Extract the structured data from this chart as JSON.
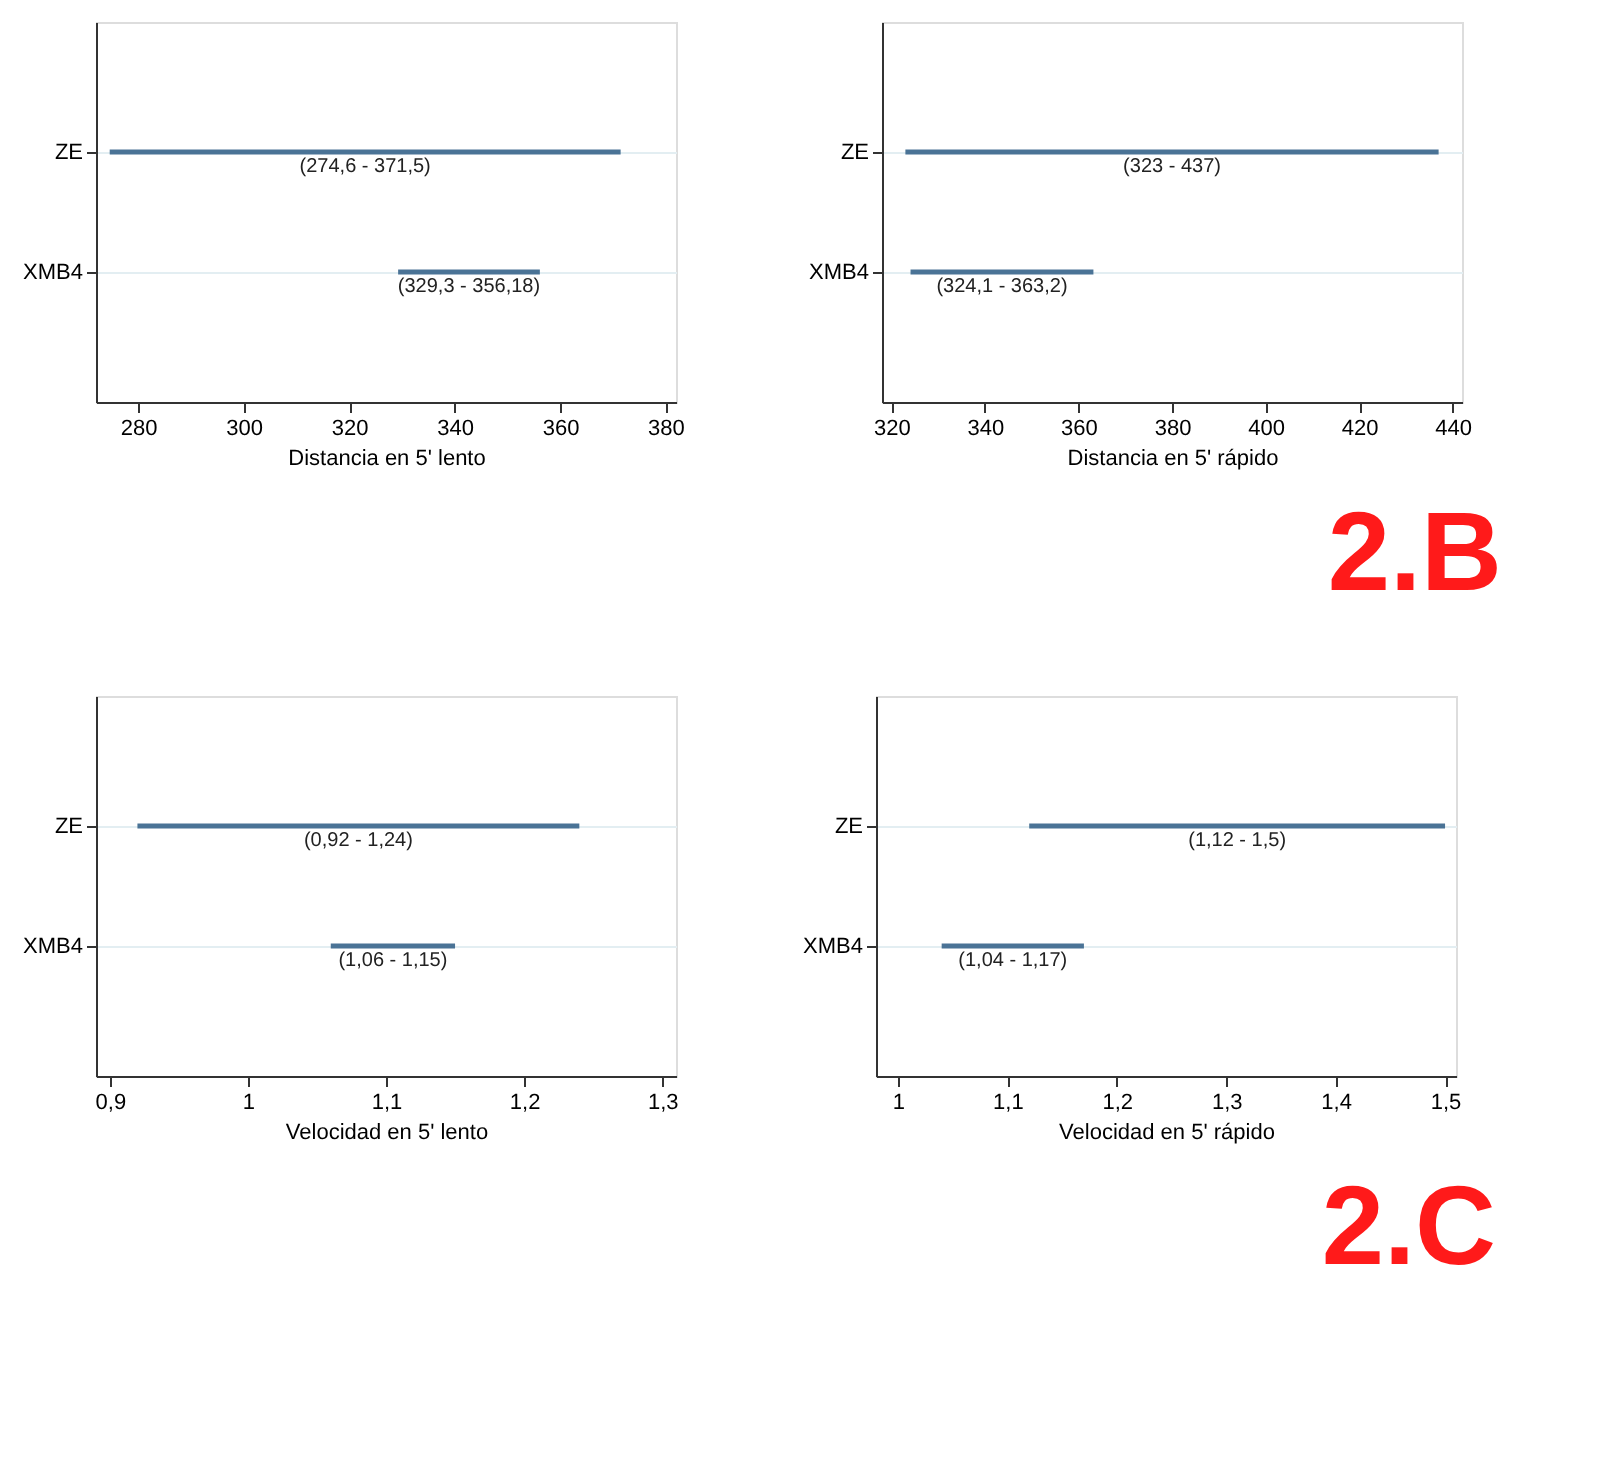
{
  "chart_data": [
    {
      "type": "bar",
      "orientation": "horizontal",
      "categories": [
        "ZE",
        "XMB4"
      ],
      "base": [
        274.6,
        329.3
      ],
      "values": [
        96.9,
        26.88
      ],
      "color": "#4a7396",
      "value_labels": [
        "(274,6 - 371,5)",
        "(329,3 - 356,18)"
      ],
      "xlabel": "Distancia en 5' lento",
      "xlim": [
        272,
        382
      ],
      "xticks": [
        280,
        300,
        320,
        340,
        360,
        380
      ],
      "grid": "y"
    },
    {
      "type": "bar",
      "orientation": "horizontal",
      "categories": [
        "ZE",
        "XMB4"
      ],
      "base": [
        323,
        324.1
      ],
      "values": [
        114,
        39.1
      ],
      "color": "#4a7396",
      "value_labels": [
        "(323 - 437)",
        "(324,1 - 363,2)"
      ],
      "xlabel": "Distancia en 5' rápido",
      "xlim": [
        318,
        442
      ],
      "xticks": [
        320,
        340,
        360,
        380,
        400,
        420,
        440
      ],
      "grid": "y",
      "annotations": [
        "2.B"
      ]
    },
    {
      "type": "bar",
      "orientation": "horizontal",
      "categories": [
        "ZE",
        "XMB4"
      ],
      "base": [
        0.92,
        1.06
      ],
      "values": [
        0.32,
        0.09
      ],
      "color": "#4a7396",
      "value_labels": [
        "(0,92 - 1,24)",
        "(1,06 - 1,15)"
      ],
      "xlabel": "Velocidad en 5' lento",
      "xlim": [
        0.89,
        1.31
      ],
      "xticks": [
        {
          "value": 0.9,
          "label": "0,9"
        },
        1,
        {
          "value": 1.1,
          "label": "1,1"
        },
        {
          "value": 1.2,
          "label": "1,2"
        },
        {
          "value": 1.3,
          "label": "1,3"
        }
      ],
      "grid": "y"
    },
    {
      "type": "bar",
      "orientation": "horizontal",
      "categories": [
        "ZE",
        "XMB4"
      ],
      "base": [
        1.12,
        1.04
      ],
      "values": [
        0.38,
        0.13
      ],
      "color": "#4a7396",
      "value_labels": [
        "(1,12 - 1,5)",
        "(1,04 - 1,17)"
      ],
      "xlabel": "Velocidad en 5' rápido",
      "xlim": [
        0.98,
        1.51
      ],
      "xticks": [
        1,
        {
          "value": 1.1,
          "label": "1,1"
        },
        {
          "value": 1.2,
          "label": "1,2"
        },
        {
          "value": 1.3,
          "label": "1,3"
        },
        {
          "value": 1.4,
          "label": "1,4"
        },
        {
          "value": 1.5,
          "label": "1,5"
        }
      ],
      "grid": "y",
      "annotations": [
        "2.C"
      ]
    }
  ]
}
